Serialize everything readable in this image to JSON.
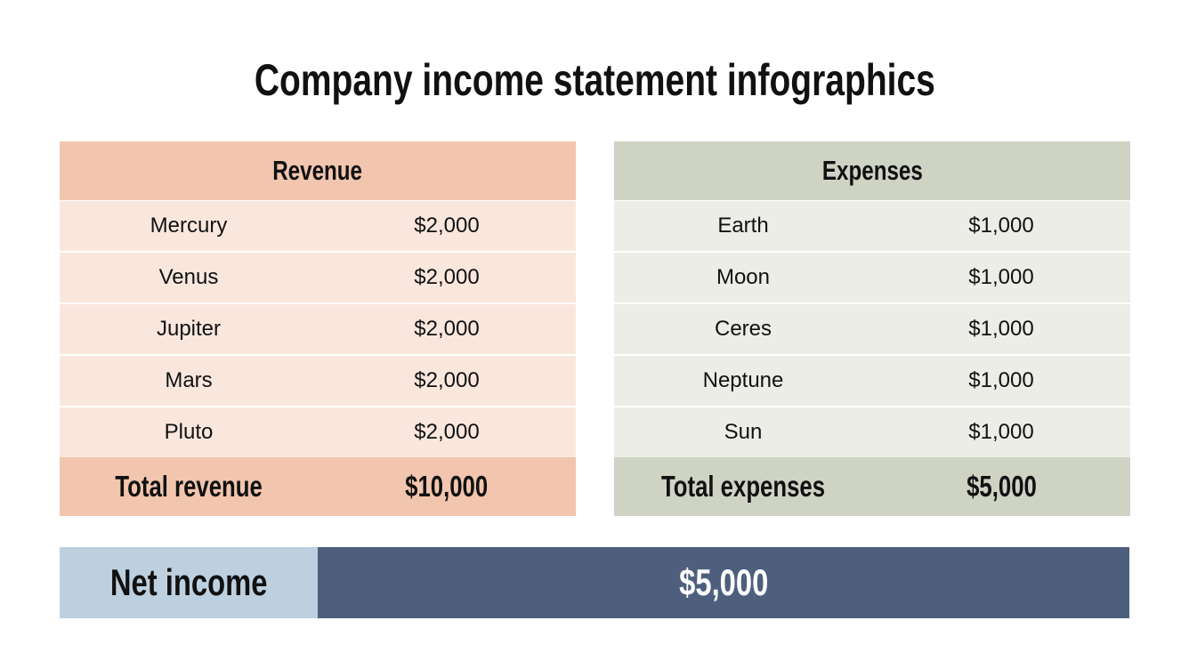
{
  "title": "Company income statement infographics",
  "revenue": {
    "header": "Revenue",
    "rows": [
      {
        "name": "Mercury",
        "amount": "$2,000"
      },
      {
        "name": "Venus",
        "amount": "$2,000"
      },
      {
        "name": "Jupiter",
        "amount": "$2,000"
      },
      {
        "name": "Mars",
        "amount": "$2,000"
      },
      {
        "name": "Pluto",
        "amount": "$2,000"
      }
    ],
    "total_label": "Total revenue",
    "total_value": "$10,000",
    "colors": {
      "header": "#f2c5ae",
      "row": "#f9e7de"
    }
  },
  "expenses": {
    "header": "Expenses",
    "rows": [
      {
        "name": "Earth",
        "amount": "$1,000"
      },
      {
        "name": "Moon",
        "amount": "$1,000"
      },
      {
        "name": "Ceres",
        "amount": "$1,000"
      },
      {
        "name": "Neptune",
        "amount": "$1,000"
      },
      {
        "name": "Sun",
        "amount": "$1,000"
      }
    ],
    "total_label": "Total expenses",
    "total_value": "$5,000",
    "colors": {
      "header": "#ced3c4",
      "row": "#ededE7"
    }
  },
  "net_income": {
    "label": "Net income",
    "value": "$5,000",
    "colors": {
      "label_bg": "#bdd0df",
      "value_bg": "#4d5f7c"
    }
  }
}
